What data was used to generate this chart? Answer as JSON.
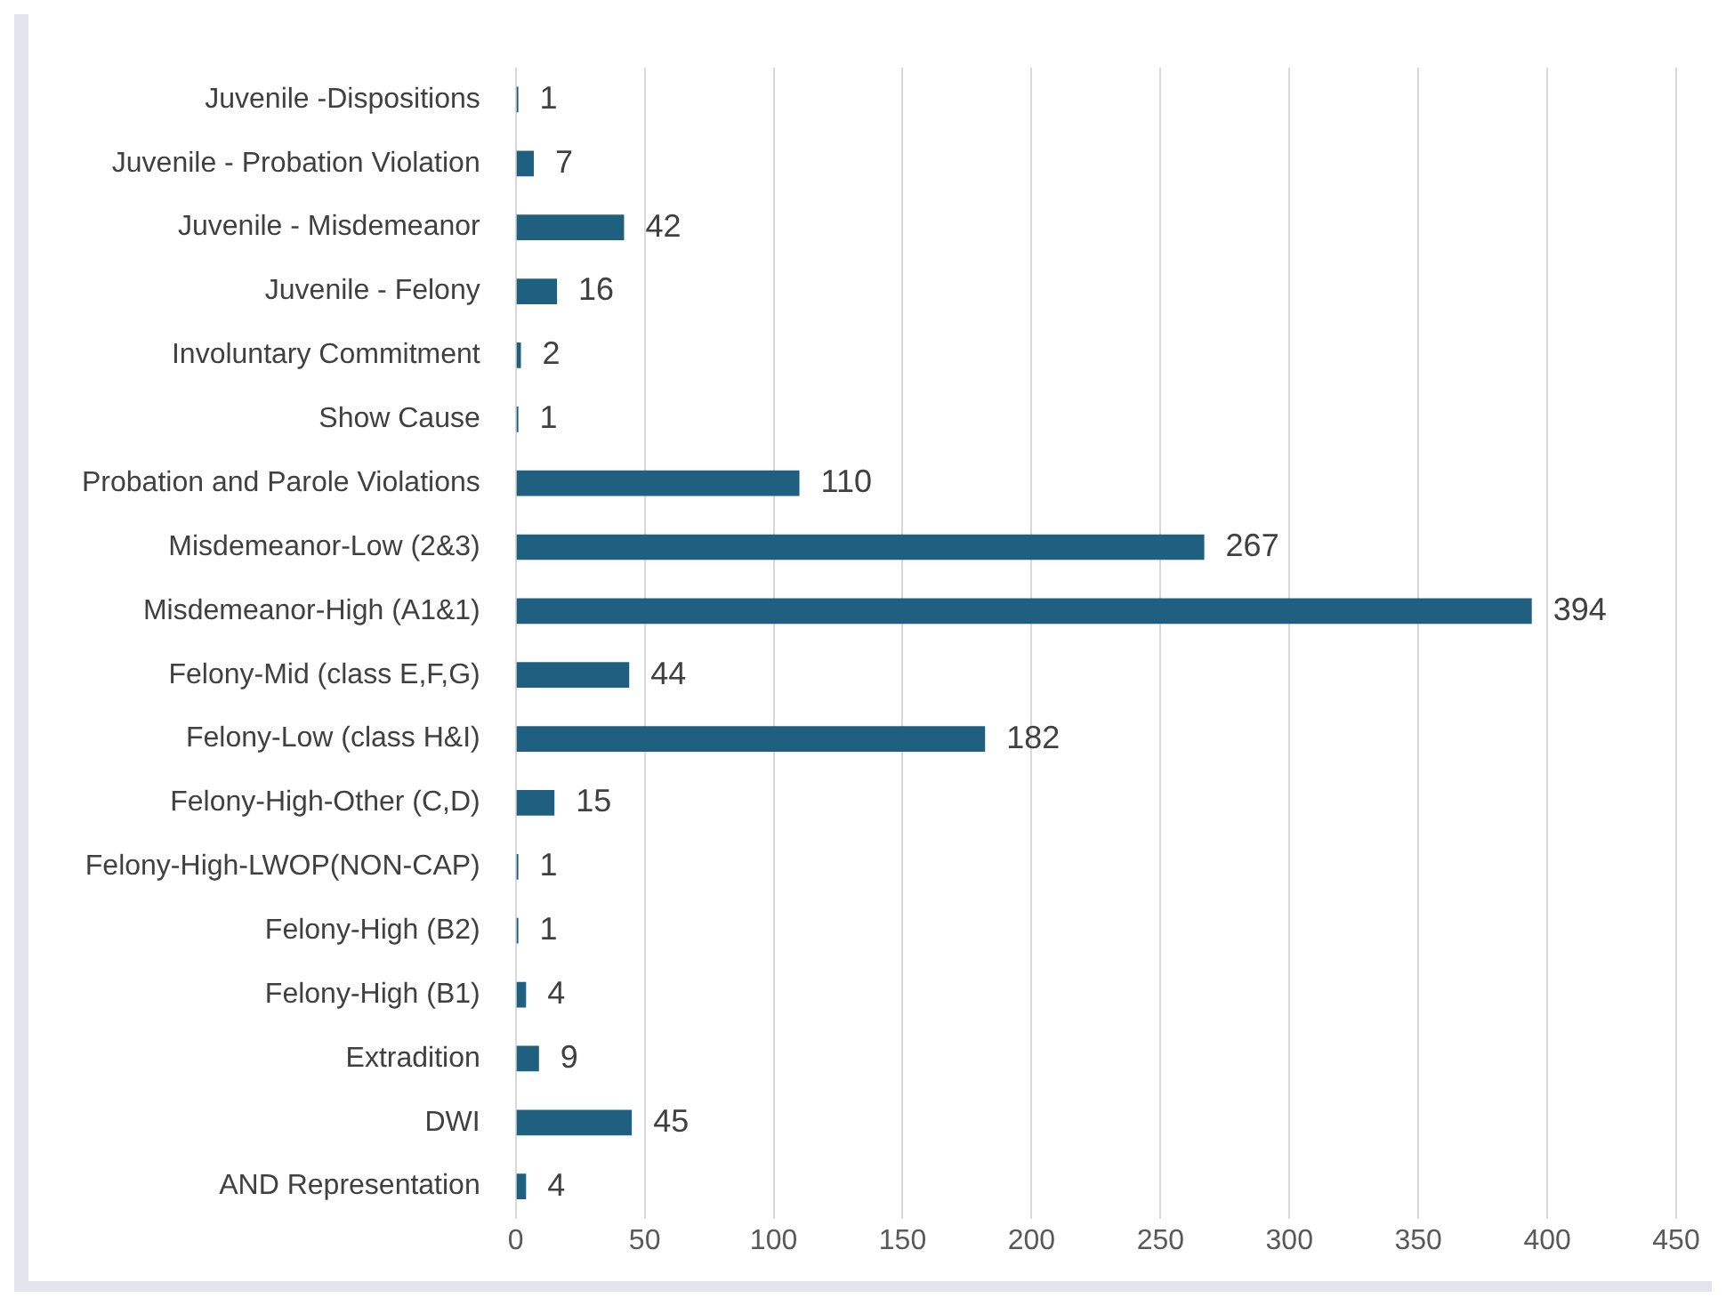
{
  "chart_data": {
    "type": "bar",
    "orientation": "horizontal",
    "categories": [
      "Juvenile -Dispositions",
      "Juvenile - Probation Violation",
      "Juvenile - Misdemeanor",
      "Juvenile - Felony",
      "Involuntary Commitment",
      "Show Cause",
      "Probation and Parole Violations",
      "Misdemeanor-Low (2&3)",
      "Misdemeanor-High (A1&1)",
      "Felony-Mid (class E,F,G)",
      "Felony-Low (class H&I)",
      "Felony-High-Other (C,D)",
      "Felony-High-LWOP(NON-CAP)",
      "Felony-High (B2)",
      "Felony-High (B1)",
      "Extradition",
      "DWI",
      "AND Representation"
    ],
    "values": [
      1,
      7,
      42,
      16,
      2,
      1,
      110,
      267,
      394,
      44,
      182,
      15,
      1,
      1,
      4,
      9,
      45,
      4
    ],
    "color": "#1f5f80",
    "xlim": [
      0,
      450
    ],
    "xticks": [
      0,
      50,
      100,
      150,
      200,
      250,
      300,
      350,
      400,
      450
    ],
    "grid": "x",
    "data_labels": true
  }
}
